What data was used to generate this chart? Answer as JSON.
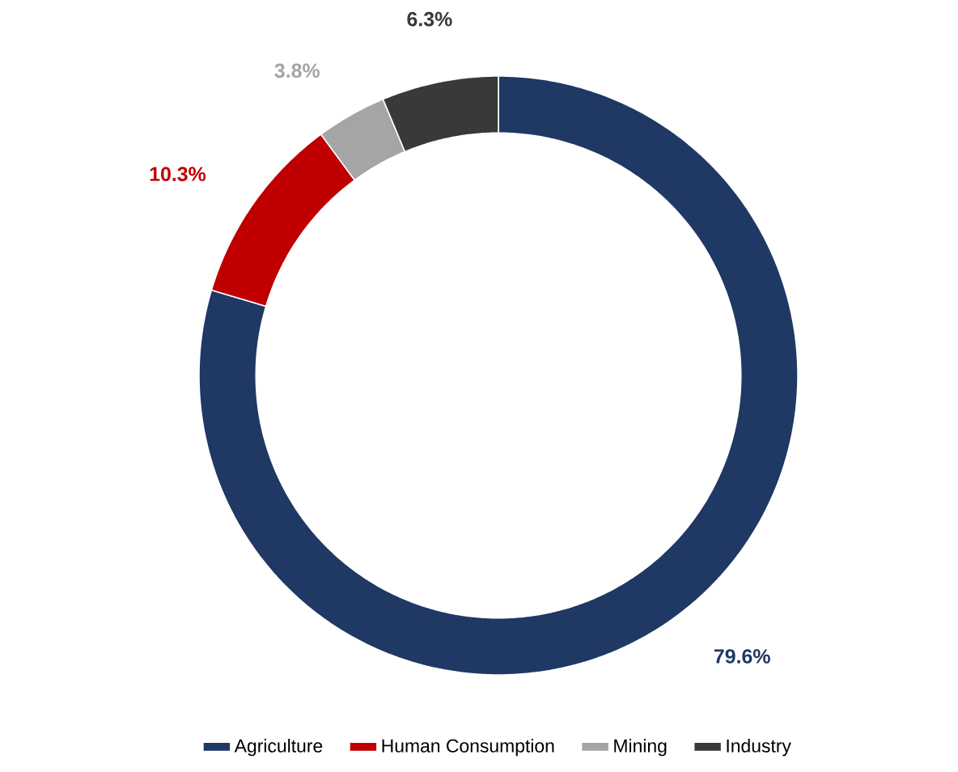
{
  "chart_data": {
    "type": "donut",
    "categories": [
      "Agriculture",
      "Human Consumption",
      "Mining",
      "Industry"
    ],
    "values": [
      79.6,
      10.3,
      3.8,
      6.3
    ],
    "value_labels": [
      "79.6%",
      "10.3%",
      "3.8%",
      "6.3%"
    ],
    "colors": [
      "#1f3864",
      "#c00000",
      "#a5a5a5",
      "#3b3838"
    ],
    "legend": "bottom"
  }
}
